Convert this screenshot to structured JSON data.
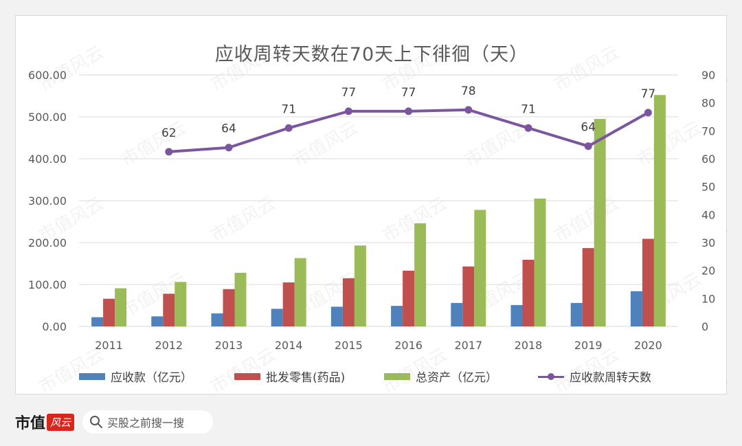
{
  "chart_data": {
    "type": "bar",
    "title": "应收周转天数在70天上下徘徊（天）",
    "categories": [
      "2011",
      "2012",
      "2013",
      "2014",
      "2015",
      "2016",
      "2017",
      "2018",
      "2019",
      "2020"
    ],
    "ylim": [
      0,
      600
    ],
    "yticks": [
      "0.00",
      "100.00",
      "200.00",
      "300.00",
      "400.00",
      "500.00",
      "600.00"
    ],
    "y2lim": [
      0,
      90
    ],
    "y2ticks": [
      "0",
      "10",
      "20",
      "30",
      "40",
      "50",
      "60",
      "70",
      "80",
      "90"
    ],
    "grid": true,
    "legend_position": "bottom",
    "series": [
      {
        "name": "应收款（亿元）",
        "type": "bar",
        "axis": "left",
        "color": "#4f81bd",
        "values": [
          22,
          24,
          31,
          42,
          47,
          49,
          56,
          51,
          56,
          84
        ]
      },
      {
        "name": "批发零售(药品)",
        "type": "bar",
        "axis": "left",
        "color": "#c0504d",
        "values": [
          66,
          78,
          89,
          105,
          115,
          133,
          143,
          159,
          187,
          209
        ]
      },
      {
        "name": "总资产（亿元）",
        "type": "bar",
        "axis": "left",
        "color": "#9bbb59",
        "values": [
          91,
          106,
          128,
          163,
          193,
          246,
          278,
          305,
          495,
          552
        ]
      },
      {
        "name": "应收款周转天数",
        "type": "line",
        "axis": "right",
        "color": "#7b559f",
        "values": [
          null,
          62,
          64,
          71,
          77,
          77,
          78,
          71,
          64,
          77
        ],
        "plot_values": [
          null,
          62.5,
          64,
          71,
          77,
          77,
          77.5,
          71,
          64.5,
          76.5
        ]
      }
    ]
  },
  "footer": {
    "brand": "市值",
    "brand_seal": "风云",
    "search_text": "买股之前搜一搜"
  },
  "watermark": "市值风云",
  "colors": {
    "grid": "#d9d9d9",
    "axis_text": "#595959"
  }
}
